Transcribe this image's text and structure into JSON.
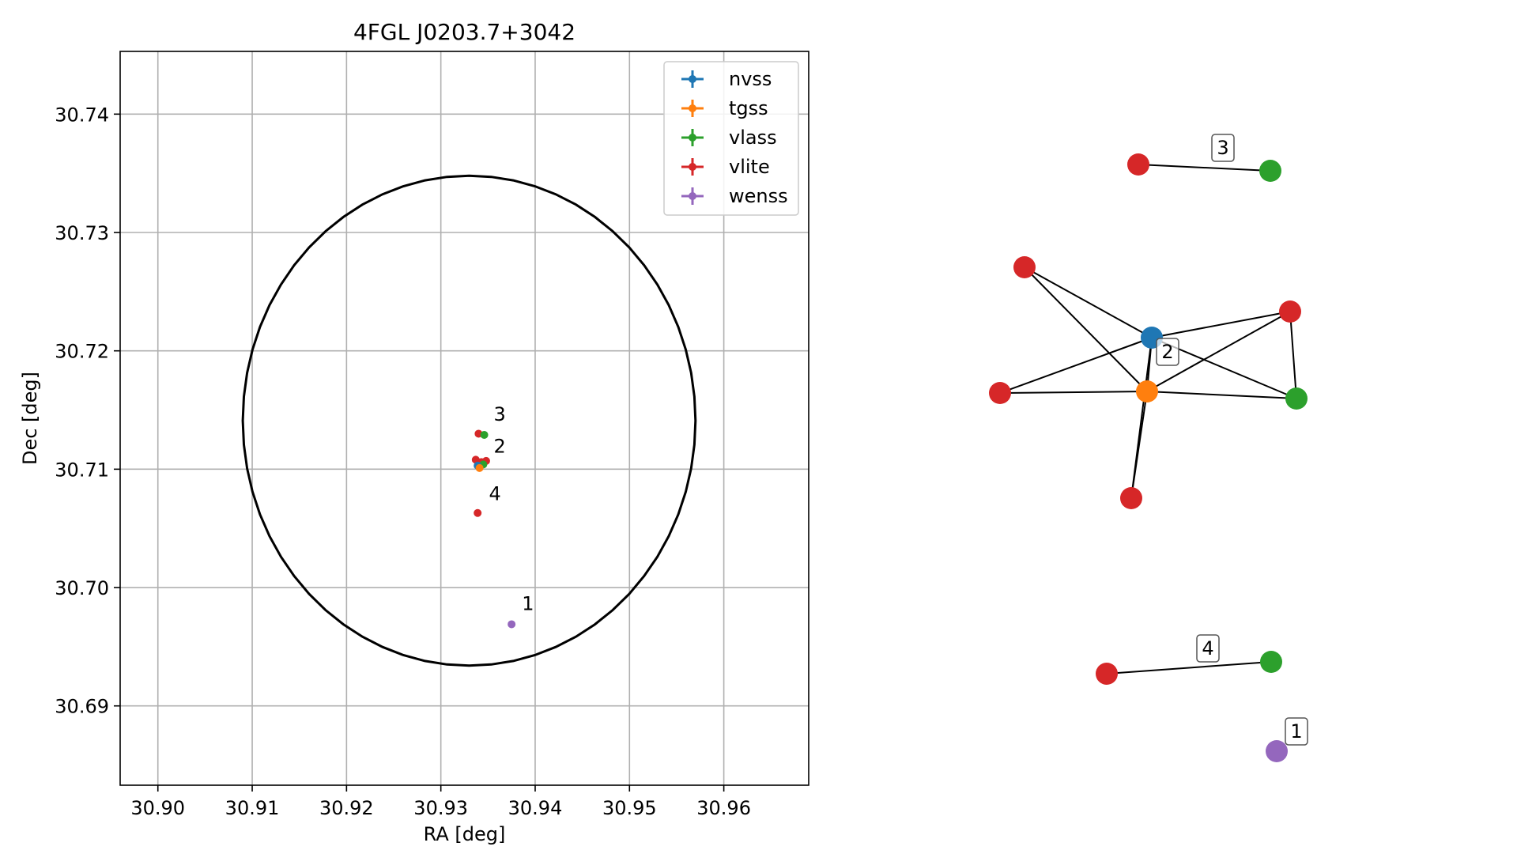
{
  "chart_data": [
    {
      "type": "scatter",
      "title": "4FGL J0203.7+3042",
      "xlabel": "RA [deg]",
      "ylabel": "Dec [deg]",
      "xlim": [
        30.896,
        30.969
      ],
      "ylim": [
        30.6833,
        30.7453
      ],
      "xticks": [
        30.9,
        30.91,
        30.92,
        30.93,
        30.94,
        30.95,
        30.96
      ],
      "xtick_labels": [
        "30.90",
        "30.91",
        "30.92",
        "30.93",
        "30.94",
        "30.95",
        "30.96"
      ],
      "yticks": [
        30.69,
        30.7,
        30.71,
        30.72,
        30.73,
        30.74
      ],
      "ytick_labels": [
        "30.69",
        "30.70",
        "30.71",
        "30.72",
        "30.73",
        "30.74"
      ],
      "grid": true,
      "legend_position": "top-right",
      "legend": [
        {
          "name": "nvss",
          "color": "#1f77b4"
        },
        {
          "name": "tgss",
          "color": "#ff7f0e"
        },
        {
          "name": "vlass",
          "color": "#2ca02c"
        },
        {
          "name": "vlite",
          "color": "#d62728"
        },
        {
          "name": "wenss",
          "color": "#9467bd"
        }
      ],
      "ellipse": {
        "center_ra": 30.933,
        "center_dec": 30.7141,
        "semi_ra": 0.024,
        "semi_dec": 0.0207,
        "color": "#000000"
      },
      "points": [
        {
          "survey": "vlite",
          "ra": 30.934,
          "dec": 30.713,
          "color": "#d62728"
        },
        {
          "survey": "vlass",
          "ra": 30.9346,
          "dec": 30.7129,
          "color": "#2ca02c"
        },
        {
          "survey": "vlite",
          "ra": 30.9337,
          "dec": 30.7108,
          "color": "#d62728"
        },
        {
          "survey": "vlite",
          "ra": 30.9343,
          "dec": 30.7106,
          "color": "#d62728"
        },
        {
          "survey": "vlite",
          "ra": 30.9348,
          "dec": 30.7107,
          "color": "#d62728"
        },
        {
          "survey": "vlass",
          "ra": 30.9345,
          "dec": 30.7104,
          "color": "#2ca02c"
        },
        {
          "survey": "nvss",
          "ra": 30.9339,
          "dec": 30.7103,
          "color": "#1f77b4"
        },
        {
          "survey": "tgss",
          "ra": 30.9341,
          "dec": 30.7101,
          "color": "#ff7f0e"
        },
        {
          "survey": "vlite",
          "ra": 30.9339,
          "dec": 30.7063,
          "color": "#d62728"
        },
        {
          "survey": "wenss",
          "ra": 30.9375,
          "dec": 30.6969,
          "color": "#9467bd"
        }
      ],
      "annotations": [
        {
          "text": "3",
          "ra": 30.9356,
          "dec": 30.7141
        },
        {
          "text": "2",
          "ra": 30.9356,
          "dec": 30.7114
        },
        {
          "text": "4",
          "ra": 30.9351,
          "dec": 30.7074
        },
        {
          "text": "1",
          "ra": 30.9386,
          "dec": 30.6981
        }
      ]
    },
    {
      "type": "network",
      "nodes": [
        {
          "id": "a",
          "color": "#d62728"
        },
        {
          "id": "b",
          "color": "#2ca02c"
        },
        {
          "id": "c",
          "color": "#d62728"
        },
        {
          "id": "d",
          "color": "#1f77b4"
        },
        {
          "id": "e",
          "color": "#d62728"
        },
        {
          "id": "f",
          "color": "#d62728"
        },
        {
          "id": "g",
          "color": "#ff7f0e"
        },
        {
          "id": "h",
          "color": "#2ca02c"
        },
        {
          "id": "i",
          "color": "#d62728"
        },
        {
          "id": "j",
          "color": "#d62728"
        },
        {
          "id": "k",
          "color": "#2ca02c"
        },
        {
          "id": "l",
          "color": "#9467bd"
        }
      ],
      "edges": [
        [
          "a",
          "b"
        ],
        [
          "c",
          "d"
        ],
        [
          "c",
          "g"
        ],
        [
          "d",
          "e"
        ],
        [
          "d",
          "f"
        ],
        [
          "d",
          "g"
        ],
        [
          "d",
          "h"
        ],
        [
          "d",
          "i"
        ],
        [
          "e",
          "g"
        ],
        [
          "e",
          "h"
        ],
        [
          "f",
          "g"
        ],
        [
          "g",
          "h"
        ],
        [
          "g",
          "i"
        ],
        [
          "j",
          "k"
        ]
      ],
      "labels": [
        "3",
        "2",
        "4",
        "1"
      ]
    }
  ]
}
